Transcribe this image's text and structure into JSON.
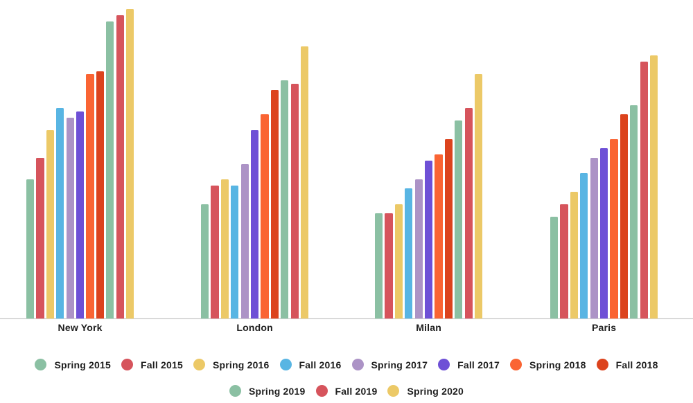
{
  "chart_data": {
    "type": "bar",
    "title": "",
    "xlabel": "",
    "ylabel": "",
    "grid": false,
    "y_axis_visible": false,
    "value_scale": "relative; no y-axis labels visible, tallest bar = 100",
    "ylim": [
      0,
      103
    ],
    "legend_position": "bottom",
    "axis_line_color": "#d9d9d9",
    "label_color": "#1f1f1f",
    "categories": [
      "New York",
      "London",
      "Milan",
      "Paris"
    ],
    "series": [
      {
        "name": "Spring 2015",
        "color": "#8bc0a3",
        "values": [
          45,
          37,
          34,
          33
        ]
      },
      {
        "name": "Fall 2015",
        "color": "#d6545c",
        "values": [
          52,
          43,
          34,
          37
        ]
      },
      {
        "name": "Spring 2016",
        "color": "#ecc967",
        "values": [
          61,
          45,
          37,
          41
        ]
      },
      {
        "name": "Fall 2016",
        "color": "#58b5e3",
        "values": [
          68,
          43,
          42,
          47
        ]
      },
      {
        "name": "Spring 2017",
        "color": "#ac93c6",
        "values": [
          65,
          50,
          45,
          52
        ]
      },
      {
        "name": "Fall 2017",
        "color": "#6e50d6",
        "values": [
          67,
          61,
          51,
          55
        ]
      },
      {
        "name": "Spring 2018",
        "color": "#fa6433",
        "values": [
          79,
          66,
          53,
          58
        ]
      },
      {
        "name": "Fall 2018",
        "color": "#dc431d",
        "values": [
          80,
          74,
          58,
          66
        ]
      },
      {
        "name": "Spring 2019",
        "color": "#8bc0a3",
        "values": [
          96,
          77,
          64,
          69
        ]
      },
      {
        "name": "Fall 2019",
        "color": "#d6545c",
        "values": [
          98,
          76,
          68,
          83
        ]
      },
      {
        "name": "Spring 2020",
        "color": "#ecc967",
        "values": [
          100,
          88,
          79,
          85
        ]
      }
    ],
    "legend_rows": [
      [
        "Spring 2015",
        "Fall 2015",
        "Spring 2016",
        "Fall 2016",
        "Spring 2017",
        "Fall 2017",
        "Spring 2018",
        "Fall 2018"
      ],
      [
        "Spring 2019",
        "Fall 2019",
        "Spring 2020"
      ]
    ]
  }
}
